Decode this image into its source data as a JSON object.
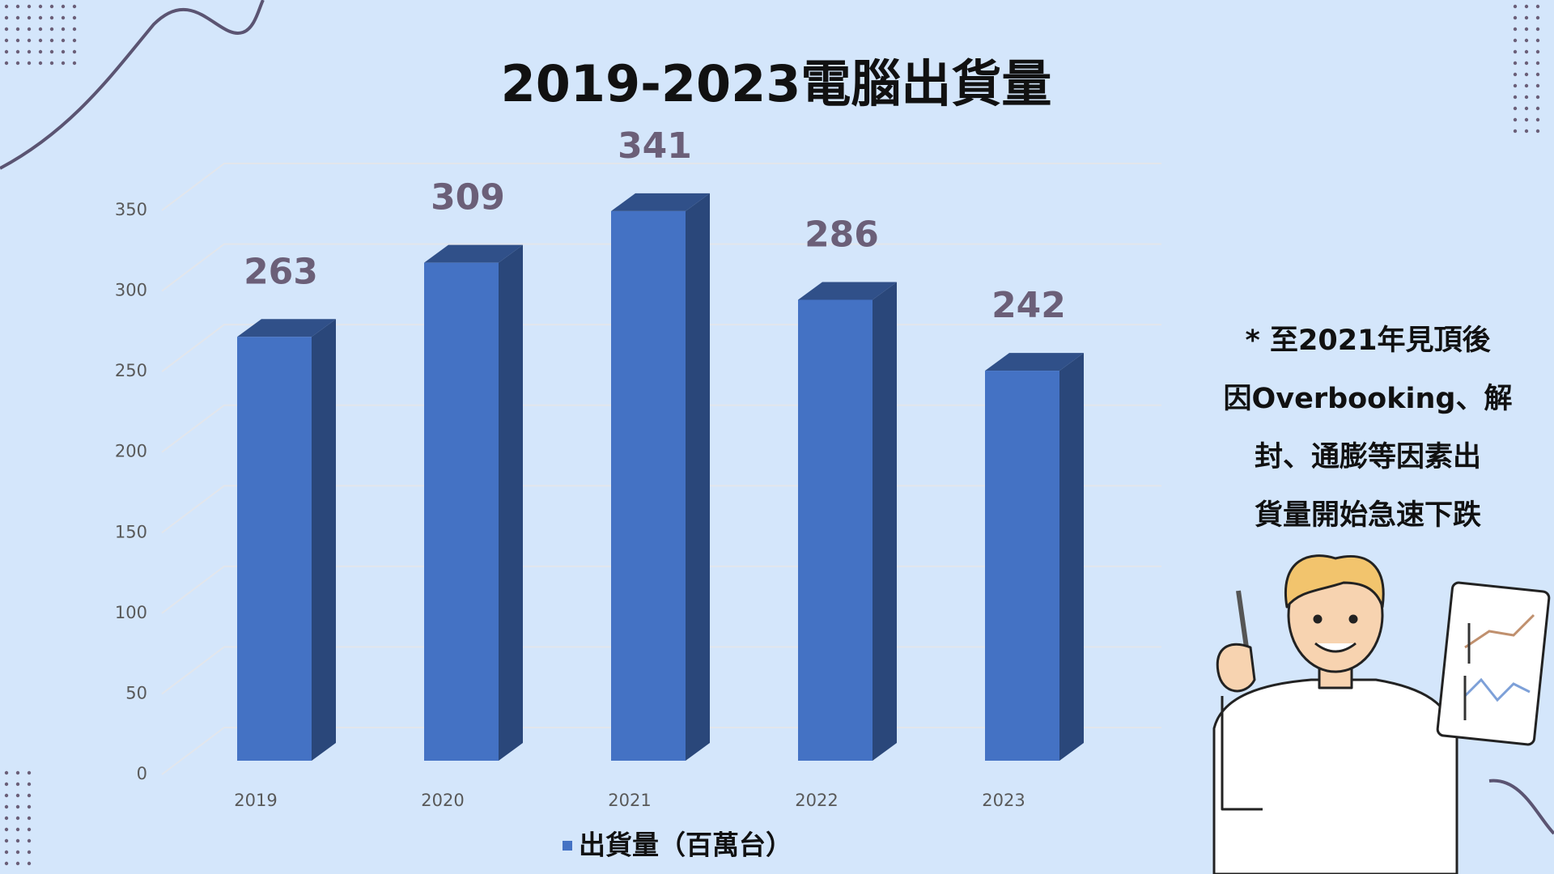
{
  "chart_data": {
    "type": "bar3d",
    "title": "2019-2023電腦出貨量",
    "categories": [
      "2019",
      "2020",
      "2021",
      "2022",
      "2023"
    ],
    "series": [
      {
        "name": "出貨量（百萬台）",
        "color": "#4472c4",
        "values": [
          263,
          309,
          341,
          286,
          242
        ]
      }
    ],
    "ylim": [
      0,
      350
    ],
    "yticks": [
      0,
      50,
      100,
      150,
      200,
      250,
      300,
      350
    ],
    "grid": true,
    "legend": "bottom"
  },
  "note": {
    "lines": [
      "* 至2021年見頂後",
      "因Overbooking、解",
      "封、通膨等因素出",
      "貨量開始急速下跌"
    ]
  }
}
